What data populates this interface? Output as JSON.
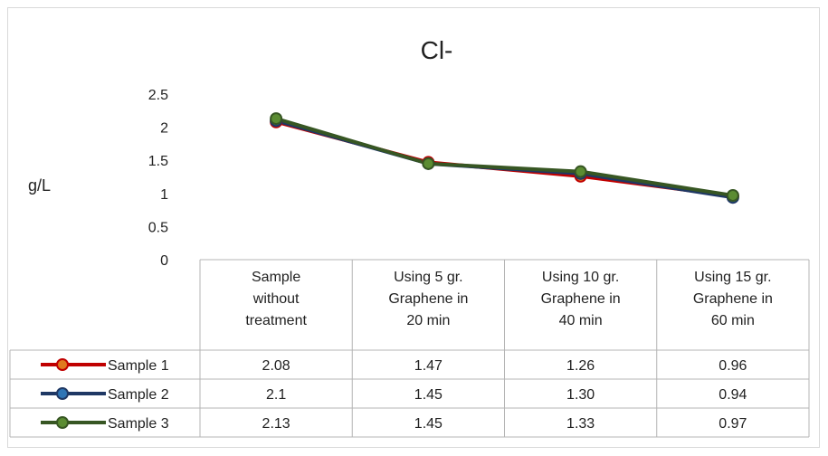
{
  "chart_data": {
    "type": "line",
    "title": "Cl-",
    "xlabel": "",
    "ylabel": "g/L",
    "ylim": [
      0,
      2.5
    ],
    "y_ticks": [
      "0",
      "0.5",
      "1",
      "1.5",
      "2",
      "2.5"
    ],
    "categories": [
      [
        "Sample",
        "without",
        "treatment"
      ],
      [
        "Using 5 gr.",
        "Graphene in",
        "20 min"
      ],
      [
        "Using 10 gr.",
        "Graphene in",
        "40 min"
      ],
      [
        "Using 15 gr.",
        "Graphene in",
        "60 min"
      ]
    ],
    "series": [
      {
        "name": "Sample 1",
        "values": [
          2.08,
          1.47,
          1.26,
          0.96
        ],
        "labels": [
          "2.08",
          "1.47",
          "1.26",
          "0.96"
        ],
        "line_color": "#c00000",
        "marker_color": "#e07a1f"
      },
      {
        "name": "Sample 2",
        "values": [
          2.1,
          1.45,
          1.3,
          0.94
        ],
        "labels": [
          "2.1",
          "1.45",
          "1.30",
          "0.94"
        ],
        "line_color": "#1f3864",
        "marker_color": "#2e75b6"
      },
      {
        "name": "Sample 3",
        "values": [
          2.13,
          1.45,
          1.33,
          0.97
        ],
        "labels": [
          "2.13",
          "1.45",
          "1.33",
          "0.97"
        ],
        "line_color": "#375623",
        "marker_color": "#5b8c32"
      }
    ],
    "grid": false,
    "legend": "data-table-left"
  }
}
